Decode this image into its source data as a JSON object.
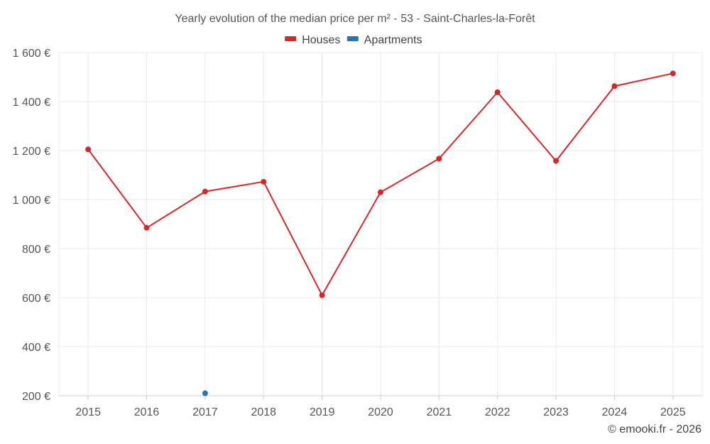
{
  "chart_data": {
    "type": "line",
    "title": "Yearly evolution of the median price per m² - 53 - Saint-Charles-la-Forêt",
    "categories": [
      "2015",
      "2016",
      "2017",
      "2018",
      "2019",
      "2020",
      "2021",
      "2022",
      "2023",
      "2024",
      "2025"
    ],
    "series": [
      {
        "name": "Houses",
        "color": "#d62728",
        "values": [
          1205,
          885,
          1033,
          1073,
          610,
          1030,
          1167,
          1438,
          1158,
          1463,
          1515
        ]
      },
      {
        "name": "Apartments",
        "color": "#1f77b4",
        "values": [
          null,
          null,
          210,
          null,
          null,
          null,
          null,
          null,
          null,
          null,
          null
        ]
      }
    ],
    "ylim": [
      200,
      1600
    ],
    "yticks": [
      200,
      400,
      600,
      800,
      1000,
      1200,
      1400,
      1600
    ],
    "ytick_labels": [
      "200 €",
      "400 €",
      "600 €",
      "800 €",
      "1 000 €",
      "1 200 €",
      "1 400 €",
      "1 600 €"
    ],
    "xlabel": "",
    "ylabel": "",
    "legend": "top-center",
    "grid": true
  },
  "credit": "© emooki.fr - 2026"
}
